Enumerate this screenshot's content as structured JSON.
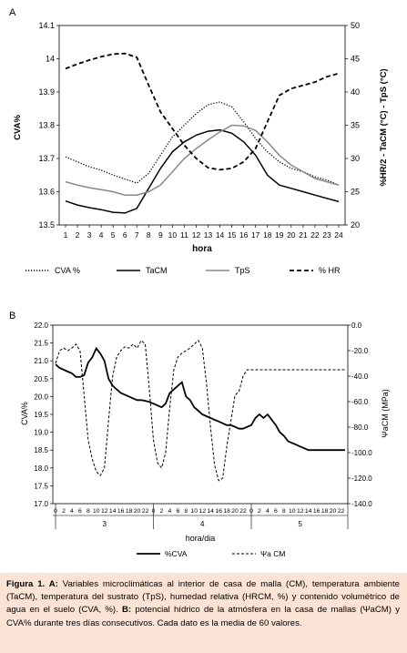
{
  "chart_data": [
    {
      "type": "line",
      "panel_label": "A",
      "xlabel": "hora",
      "ylabel": "CVA%",
      "y2label": "%HR/2 - TaCM (°C) - TpS (°C)",
      "ylim": [
        13.5,
        14.1
      ],
      "yticks": [
        "13.5",
        "13.6",
        "13.7",
        "13.8",
        "13.9",
        "14",
        "14.1"
      ],
      "y2lim": [
        20,
        50
      ],
      "y2ticks": [
        "20",
        "25",
        "30",
        "35",
        "40",
        "45",
        "50"
      ],
      "categories": [
        "1",
        "2",
        "3",
        "4",
        "5",
        "6",
        "7",
        "8",
        "9",
        "10",
        "11",
        "12",
        "13",
        "14",
        "15",
        "16",
        "17",
        "18",
        "19",
        "20",
        "21",
        "22",
        "23",
        "24"
      ],
      "legend_position": "bottom",
      "series": [
        {
          "name": "CVA %",
          "axis": "left",
          "style": "dotted",
          "color": "#000000",
          "values": [
            13.705,
            13.69,
            13.675,
            13.665,
            13.65,
            13.638,
            13.626,
            13.655,
            13.71,
            13.765,
            13.8,
            13.835,
            13.862,
            13.87,
            13.855,
            13.81,
            13.76,
            13.72,
            13.69,
            13.67,
            13.66,
            13.645,
            13.635,
            13.62
          ]
        },
        {
          "name": "TaCM",
          "axis": "right",
          "style": "solid",
          "color": "#000000",
          "values": [
            23.6,
            23.0,
            22.6,
            22.3,
            21.9,
            21.8,
            22.5,
            25.5,
            28.5,
            31.0,
            32.5,
            33.5,
            34.1,
            34.3,
            33.8,
            32.5,
            30.5,
            27.5,
            26.0,
            25.5,
            25.0,
            24.5,
            24.0,
            23.5
          ]
        },
        {
          "name": "TpS",
          "axis": "right",
          "style": "solid",
          "color": "#888888",
          "values": [
            26.5,
            26.0,
            25.6,
            25.3,
            25.0,
            24.5,
            24.5,
            25.0,
            26.0,
            28.0,
            30.0,
            31.5,
            32.8,
            34.0,
            35.0,
            34.9,
            34.2,
            32.5,
            30.5,
            29.0,
            28.0,
            27.0,
            26.5,
            26.0
          ]
        },
        {
          "name": "% HR",
          "axis": "right",
          "style": "dashed",
          "color": "#000000",
          "values": [
            43.5,
            44.2,
            44.8,
            45.3,
            45.7,
            45.8,
            45.2,
            41.0,
            37.0,
            34.5,
            32.0,
            30.0,
            28.6,
            28.3,
            28.5,
            29.5,
            31.5,
            35.5,
            39.5,
            40.5,
            41.0,
            41.5,
            42.3,
            42.8
          ]
        }
      ]
    },
    {
      "type": "line",
      "panel_label": "B",
      "xlabel": "hora/dia",
      "ylabel": "CVA%",
      "y2label": "ΨaCM (MPa)",
      "ylim": [
        17.0,
        22.0
      ],
      "yticks": [
        "17.0",
        "17.5",
        "18.0",
        "18.5",
        "19.0",
        "19.5",
        "20.0",
        "20.5",
        "21.0",
        "21.5",
        "22.0"
      ],
      "y2lim": [
        -140,
        0
      ],
      "y2ticks": [
        "0.0",
        "-20.0",
        "-40.0",
        "-60.0",
        "-80.0",
        "-100.0",
        "-120.0",
        "-140.0"
      ],
      "hour_ticks": [
        "0",
        "2",
        "4",
        "6",
        "8",
        "10",
        "12",
        "14",
        "16",
        "18",
        "20",
        "22"
      ],
      "days": [
        "3",
        "4",
        "5"
      ],
      "legend_position": "bottom",
      "x": [
        0,
        1,
        2,
        3,
        4,
        5,
        6,
        7,
        8,
        9,
        10,
        11,
        12,
        13,
        14,
        15,
        16,
        17,
        18,
        19,
        20,
        21,
        22,
        23,
        24,
        25,
        26,
        27,
        28,
        29,
        30,
        31,
        32,
        33,
        34,
        35,
        36,
        37,
        38,
        39,
        40,
        41,
        42,
        43,
        44,
        45,
        46,
        47,
        48,
        49,
        50,
        51,
        52,
        53,
        54,
        55,
        56,
        57,
        58,
        59,
        60,
        61,
        62,
        63,
        64,
        65,
        66,
        67,
        68,
        69,
        70,
        71
      ],
      "series": [
        {
          "name": "%CVA",
          "axis": "left",
          "style": "solid",
          "color": "#000000",
          "values": [
            20.9,
            20.8,
            20.75,
            20.7,
            20.65,
            20.55,
            20.55,
            20.6,
            20.95,
            21.1,
            21.35,
            21.2,
            21.0,
            20.5,
            20.3,
            20.2,
            20.1,
            20.05,
            20.0,
            19.95,
            19.9,
            19.9,
            19.88,
            19.85,
            19.8,
            19.75,
            19.7,
            19.8,
            20.1,
            20.2,
            20.3,
            20.4,
            20.0,
            19.9,
            19.7,
            19.6,
            19.5,
            19.45,
            19.4,
            19.35,
            19.3,
            19.25,
            19.2,
            19.2,
            19.15,
            19.1,
            19.1,
            19.15,
            19.2,
            19.4,
            19.5,
            19.4,
            19.5,
            19.35,
            19.2,
            19.0,
            18.9,
            18.75,
            18.7,
            18.65,
            18.6,
            18.55,
            18.5,
            18.5,
            18.5,
            18.5,
            18.5,
            18.5,
            18.5,
            18.5,
            18.5,
            18.5
          ]
        },
        {
          "name": "Ψa CM",
          "axis": "right",
          "style": "dashed",
          "color": "#000000",
          "values": [
            -30,
            -20,
            -18,
            -20,
            -18,
            -15,
            -20,
            -55,
            -90,
            -105,
            -115,
            -118,
            -112,
            -75,
            -40,
            -25,
            -20,
            -17,
            -18,
            -15,
            -18,
            -12,
            -15,
            -50,
            -90,
            -108,
            -112,
            -100,
            -65,
            -35,
            -25,
            -22,
            -20,
            -18,
            -15,
            -12,
            -18,
            -45,
            -80,
            -110,
            -122,
            -120,
            -95,
            -75,
            -55,
            -52,
            -40,
            -35,
            -35,
            -35,
            -35,
            -35,
            -35,
            -35,
            -35,
            -35,
            -35,
            -35,
            -35,
            -35,
            -35,
            -35,
            -35,
            -35,
            -35,
            -35,
            -35,
            -35,
            -35,
            -35,
            -35,
            -35
          ]
        }
      ]
    }
  ],
  "caption": {
    "label": "Figura 1. A:",
    "part_a": " Variables microclimáticas al interior de casa de malla (CM), temperatura ambiente (TaCM), temperatura del sustrato (TpS), humedad relativa (HRCM, %) y contenido volumétrico de agua en el suelo (CVA, %).",
    "label_b": "B:",
    "part_b": " potencial hídrico de la atmósfera en la casa de mallas (ΨaCM) y CVA% durante tres días consecutivos.  Cada dato es la media de 60 valores."
  }
}
